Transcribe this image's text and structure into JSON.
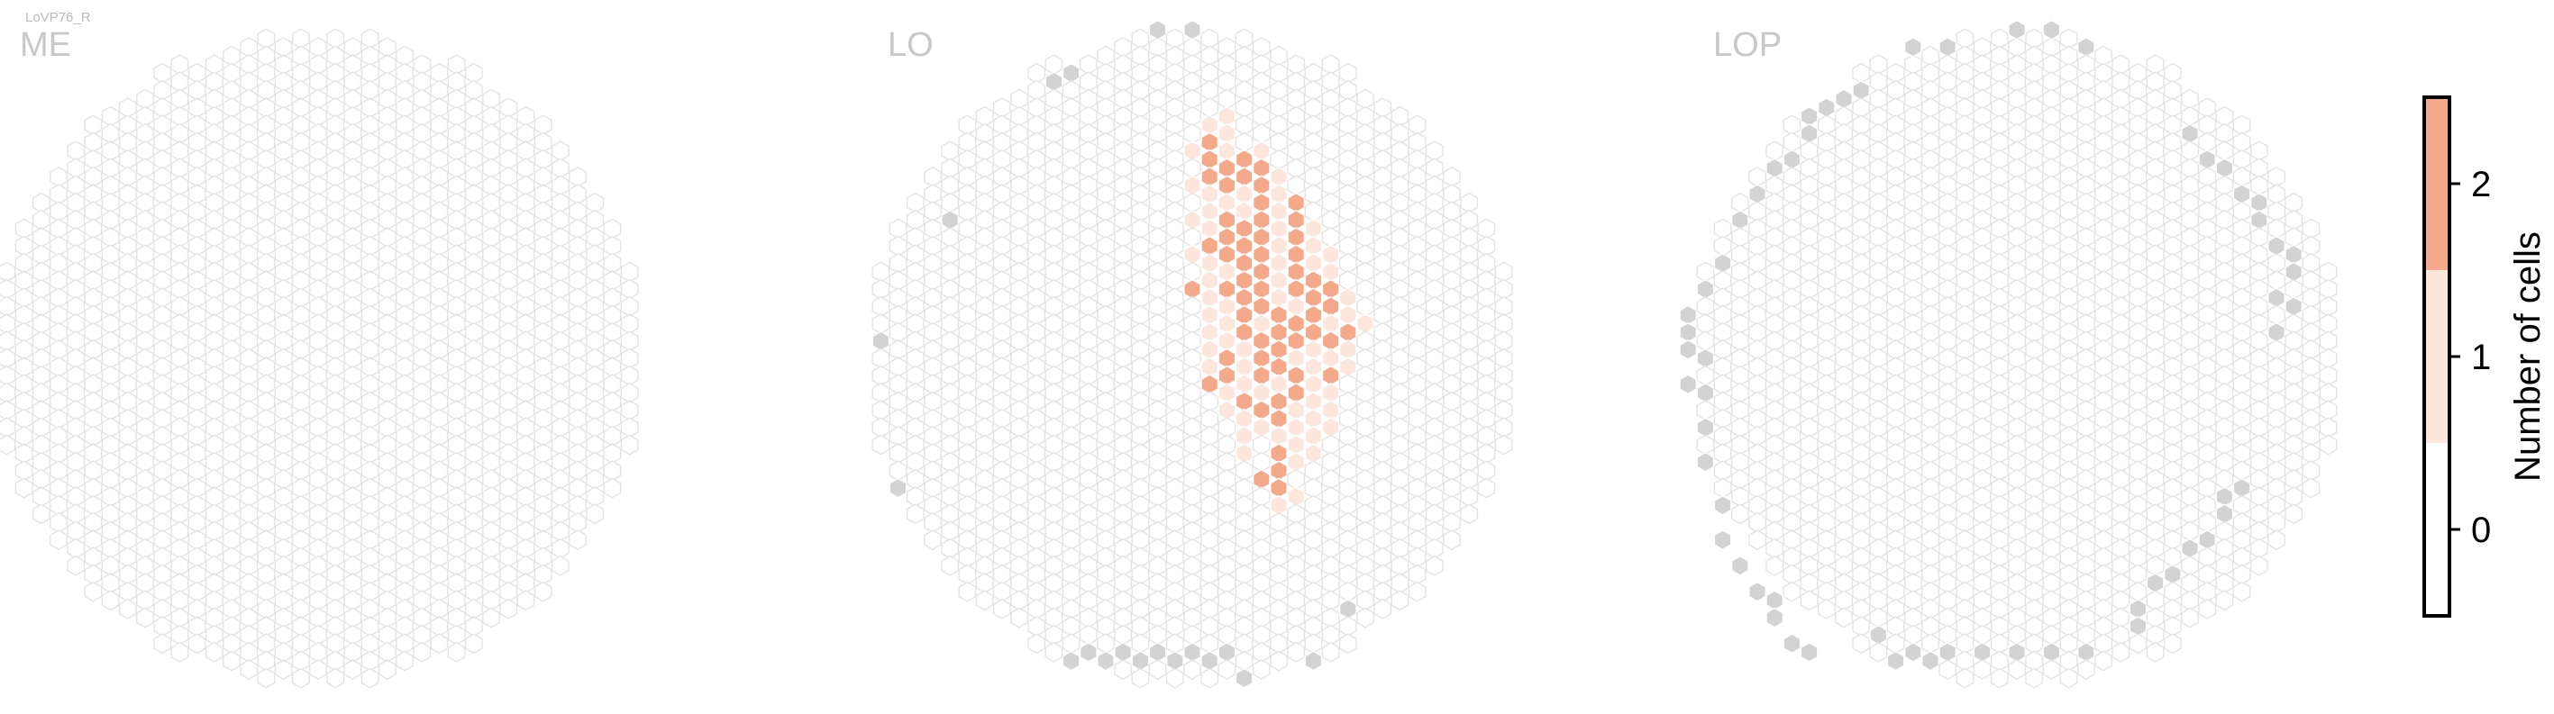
{
  "cell_type": "LoVP76_R",
  "panels": [
    {
      "label": "ME",
      "grey_hexes": [],
      "counts": {}
    },
    {
      "label": "LO",
      "grey_hexes": [
        [
          -2,
          -19
        ],
        [
          -7,
          -17
        ],
        [
          -8,
          -16
        ],
        [
          -14,
          -8
        ],
        [
          -18,
          -1
        ],
        [
          -17,
          7
        ],
        [
          3,
          18
        ],
        [
          7,
          17
        ],
        [
          9,
          14
        ],
        [
          -7,
          17
        ],
        [
          -6,
          17
        ],
        [
          -5,
          17
        ],
        [
          -4,
          17
        ],
        [
          -3,
          17
        ],
        [
          -2,
          17
        ],
        [
          -1,
          17
        ],
        [
          0,
          17
        ],
        [
          1,
          17
        ],
        [
          2,
          17
        ],
        [
          0,
          -19
        ]
      ],
      "counts": {
        "1,-14": 1,
        "2,-14": 1,
        "1,-13": 2,
        "2,-13": 1,
        "0,-12": 1,
        "1,-12": 2,
        "2,-12": 1,
        "3,-12": 2,
        "4,-12": 1,
        "1,-11": 2,
        "2,-11": 2,
        "3,-11": 2,
        "4,-11": 2,
        "5,-11": 1,
        "0,-10": 1,
        "1,-10": 1,
        "2,-10": 2,
        "3,-10": 1,
        "4,-10": 2,
        "5,-10": 1,
        "1,-9": 1,
        "2,-9": 1,
        "3,-9": 1,
        "4,-9": 2,
        "5,-9": 1,
        "6,-9": 2,
        "0,-8": 1,
        "1,-8": 1,
        "2,-8": 2,
        "3,-8": 2,
        "4,-8": 2,
        "5,-8": 1,
        "6,-8": 2,
        "7,-8": 1,
        "1,-7": 2,
        "2,-7": 2,
        "3,-7": 2,
        "4,-7": 2,
        "5,-7": 1,
        "6,-7": 2,
        "7,-7": 1,
        "0,-6": 1,
        "1,-6": 1,
        "2,-6": 2,
        "3,-6": 2,
        "4,-6": 2,
        "5,-6": 1,
        "6,-6": 2,
        "7,-6": 1,
        "8,-6": 1,
        "1,-5": 1,
        "2,-5": 1,
        "3,-5": 2,
        "4,-5": 2,
        "5,-5": 1,
        "6,-5": 2,
        "7,-5": 2,
        "8,-5": 1,
        "0,-4": 2,
        "1,-4": 1,
        "2,-4": 2,
        "3,-4": 2,
        "4,-4": 2,
        "5,-4": 1,
        "6,-4": 2,
        "7,-4": 2,
        "8,-4": 2,
        "9,-4": 1,
        "1,-3": 1,
        "2,-3": 1,
        "3,-3": 2,
        "4,-3": 2,
        "5,-3": 2,
        "6,-3": 1,
        "7,-3": 2,
        "8,-3": 2,
        "9,-3": 1,
        "1,-2": 1,
        "2,-2": 1,
        "3,-2": 2,
        "4,-2": 1,
        "5,-2": 2,
        "6,-2": 2,
        "7,-2": 2,
        "8,-2": 1,
        "9,-2": 2,
        "10,-2": 1,
        "1,-1": 1,
        "2,-1": 1,
        "3,-1": 1,
        "4,-1": 2,
        "5,-1": 2,
        "6,-1": 2,
        "7,-1": 1,
        "8,-1": 2,
        "9,-1": 1,
        "1,0": 1,
        "2,0": 2,
        "3,0": 1,
        "4,0": 2,
        "5,0": 2,
        "6,0": 1,
        "7,0": 1,
        "8,0": 1,
        "9,0": 1,
        "1,1": 2,
        "2,1": 2,
        "3,1": 1,
        "4,1": 2,
        "5,1": 1,
        "6,1": 2,
        "7,1": 1,
        "8,1": 2,
        "2,2": 1,
        "3,2": 2,
        "4,2": 1,
        "5,2": 2,
        "6,2": 2,
        "7,2": 1,
        "8,2": 1,
        "2,3": 1,
        "3,3": 1,
        "4,3": 2,
        "5,3": 2,
        "6,3": 1,
        "7,3": 1,
        "8,3": 1,
        "3,4": 1,
        "4,4": 1,
        "5,4": 1,
        "6,4": 1,
        "7,4": 1,
        "8,4": 1,
        "3,5": 1,
        "5,5": 2,
        "6,5": 1,
        "7,5": 1,
        "5,6": 2,
        "6,6": 1,
        "4,7": 2,
        "5,7": 2,
        "5,8": 1,
        "6,8": 1
      }
    },
    {
      "label": "LOP",
      "grey_hexes": [
        [
          -6,
          -18
        ],
        [
          -4,
          -18
        ],
        [
          0,
          -19
        ],
        [
          2,
          -19
        ],
        [
          4,
          -18
        ],
        [
          -9,
          -16
        ],
        [
          -10,
          -15
        ],
        [
          -11,
          -15
        ],
        [
          -12,
          -14
        ],
        [
          -12,
          -13
        ],
        [
          -13,
          -12
        ],
        [
          -14,
          -11
        ],
        [
          -15,
          -10
        ],
        [
          -16,
          -8
        ],
        [
          -17,
          -6
        ],
        [
          -18,
          -4
        ],
        [
          -19,
          -3
        ],
        [
          -19,
          -2
        ],
        [
          -19,
          -1
        ],
        [
          -18,
          0
        ],
        [
          -19,
          1
        ],
        [
          -18,
          2
        ],
        [
          -18,
          4
        ],
        [
          -18,
          6
        ],
        [
          -17,
          8
        ],
        [
          -17,
          10
        ],
        [
          -16,
          12
        ],
        [
          -15,
          13
        ],
        [
          -14,
          14
        ],
        [
          -14,
          15
        ],
        [
          -13,
          16
        ],
        [
          -12,
          17
        ],
        [
          -8,
          16
        ],
        [
          -7,
          17
        ],
        [
          -6,
          17
        ],
        [
          -5,
          17
        ],
        [
          -4,
          17
        ],
        [
          -2,
          17
        ],
        [
          0,
          17
        ],
        [
          2,
          17
        ],
        [
          4,
          17
        ],
        [
          10,
          -13
        ],
        [
          11,
          -12
        ],
        [
          12,
          -11
        ],
        [
          13,
          -10
        ],
        [
          14,
          -9
        ],
        [
          14,
          -8
        ],
        [
          15,
          -7
        ],
        [
          16,
          -6
        ],
        [
          16,
          -5
        ],
        [
          15,
          -4
        ],
        [
          16,
          -3
        ],
        [
          15,
          -2
        ],
        [
          13,
          7
        ],
        [
          12,
          8
        ],
        [
          12,
          9
        ],
        [
          11,
          10
        ],
        [
          10,
          11
        ],
        [
          9,
          12
        ],
        [
          8,
          13
        ],
        [
          7,
          14
        ],
        [
          7,
          15
        ]
      ],
      "counts": {}
    }
  ],
  "colorbar": {
    "label": "Number of cells",
    "ticks": [
      "2",
      "1",
      "0"
    ]
  },
  "colors": {
    "empty_stroke": "#e3e3e3",
    "grey_fill": "#d3d3d3",
    "count_1": "#fde6dc",
    "count_2": "#f4a98a",
    "panel_label": "#c8c8c8",
    "cell_type_label": "#bbbbbb"
  },
  "chart_data": {
    "type": "heatmap",
    "title": "LoVP76_R",
    "panels": [
      "ME",
      "LO",
      "LOP"
    ],
    "value_label": "Number of cells",
    "value_range": [
      0,
      2
    ],
    "categories": [
      0,
      1,
      2
    ],
    "note_values_per_panel": "LO panel counts in panels[1].counts keyed by hex column,row; ME and LOP all zero"
  }
}
